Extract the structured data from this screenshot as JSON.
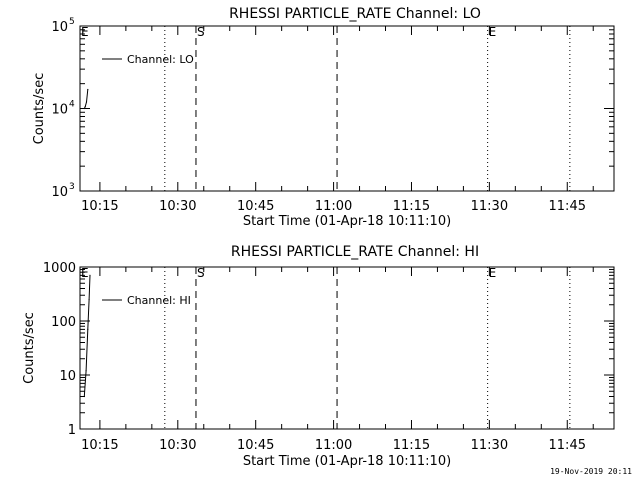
{
  "footer": {
    "timestamp": "19-Nov-2019 20:11"
  },
  "chart_data": [
    {
      "type": "line",
      "title": "RHESSI PARTICLE_RATE Channel: LO",
      "xlabel": "Start Time (01-Apr-18 10:11:10)",
      "ylabel": "Counts/sec",
      "yscale": "log",
      "ylim": [
        1000,
        100000
      ],
      "y_ticks": [
        {
          "value": 1000,
          "base": "10",
          "exp": "3"
        },
        {
          "value": 10000,
          "base": "10",
          "exp": "4"
        },
        {
          "value": 100000,
          "base": "10",
          "exp": "5"
        }
      ],
      "xlim": [
        "10:11:10",
        "11:54:00"
      ],
      "x_ticks": [
        "10:15",
        "10:30",
        "10:45",
        "11:00",
        "11:15",
        "11:30",
        "11:45"
      ],
      "legend": {
        "label": "Channel: LO",
        "placement": "top-left"
      },
      "series": [
        {
          "name": "Channel: LO",
          "x": [
            "10:12:00",
            "10:12:10",
            "10:12:25",
            "10:12:40"
          ],
          "y": [
            10000,
            10500,
            12000,
            17000
          ]
        }
      ],
      "markers": [
        {
          "time": "10:11:40",
          "label": "E",
          "style": "none"
        },
        {
          "time": "10:27:30",
          "label": "",
          "style": "dotted"
        },
        {
          "time": "10:33:30",
          "label": "S",
          "style": "dashed"
        },
        {
          "time": "11:00:40",
          "label": "",
          "style": "dashed"
        },
        {
          "time": "11:29:40",
          "label": "E",
          "style": "dotted"
        },
        {
          "time": "11:45:30",
          "label": "",
          "style": "dotted"
        }
      ]
    },
    {
      "type": "line",
      "title": "RHESSI PARTICLE_RATE Channel: HI",
      "xlabel": "Start Time (01-Apr-18 10:11:10)",
      "ylabel": "Counts/sec",
      "yscale": "log",
      "ylim": [
        1,
        1000
      ],
      "y_ticks": [
        {
          "value": 1,
          "label": "1"
        },
        {
          "value": 10,
          "label": "10"
        },
        {
          "value": 100,
          "label": "100"
        },
        {
          "value": 1000,
          "label": "1000"
        }
      ],
      "xlim": [
        "10:11:10",
        "11:54:00"
      ],
      "x_ticks": [
        "10:15",
        "10:30",
        "10:45",
        "11:00",
        "11:15",
        "11:30",
        "11:45"
      ],
      "legend": {
        "label": "Channel: HI",
        "placement": "top-left"
      },
      "series": [
        {
          "name": "Channel: HI",
          "x": [
            "10:12:00",
            "10:12:20",
            "10:12:40",
            "10:12:55",
            "10:13:05"
          ],
          "y": [
            4,
            12,
            70,
            250,
            700
          ]
        }
      ],
      "markers": [
        {
          "time": "10:11:40",
          "label": "E",
          "style": "none"
        },
        {
          "time": "10:27:30",
          "label": "",
          "style": "dotted"
        },
        {
          "time": "10:33:30",
          "label": "S",
          "style": "dashed"
        },
        {
          "time": "11:00:40",
          "label": "",
          "style": "dashed"
        },
        {
          "time": "11:29:40",
          "label": "E",
          "style": "dotted"
        },
        {
          "time": "11:45:30",
          "label": "",
          "style": "dotted"
        }
      ]
    }
  ]
}
